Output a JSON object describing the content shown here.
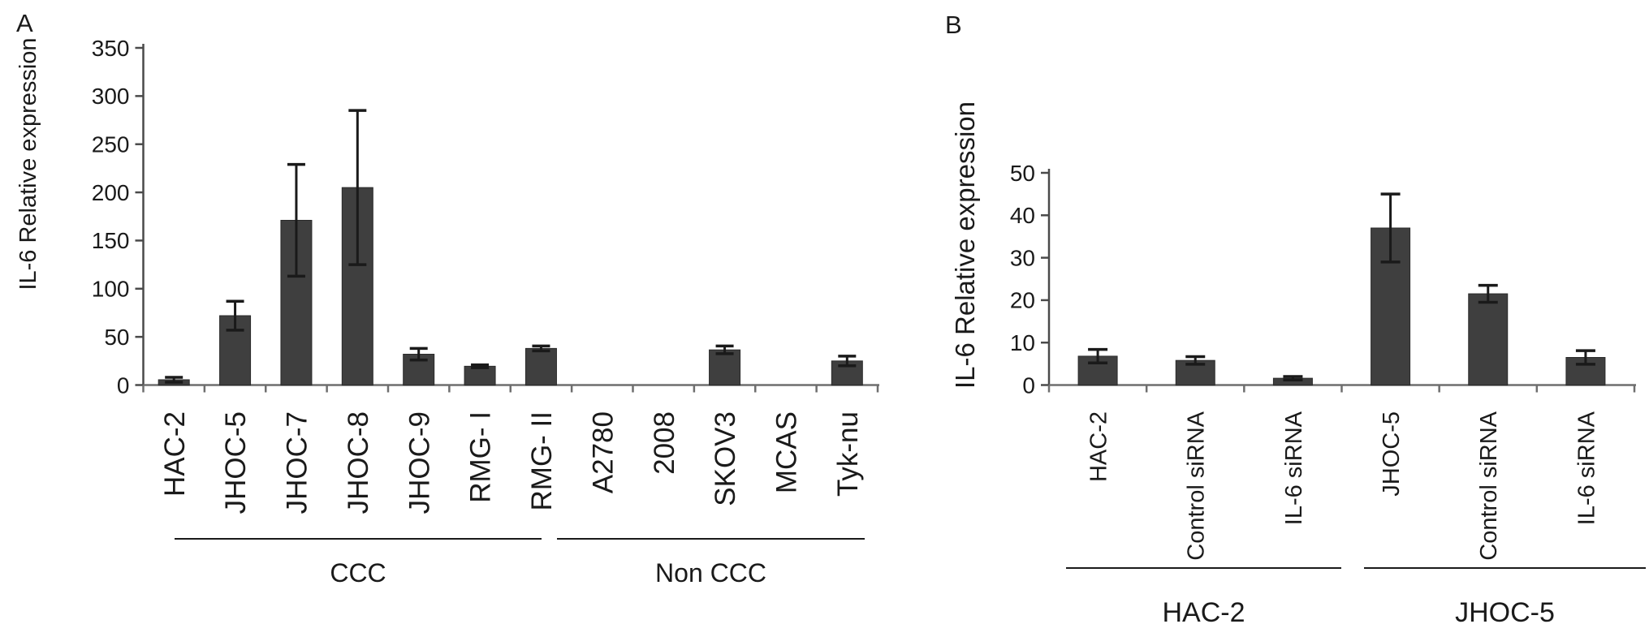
{
  "figure": {
    "description": "Two-panel bar figure of IL-6 relative expression in ovarian cancer cell lines"
  },
  "chart_data": [
    {
      "type": "bar",
      "panel": "A",
      "title": "",
      "xlabel": "",
      "ylabel": "IL-6 Relative expression",
      "ylim": [
        0,
        350
      ],
      "ytick_interval": 50,
      "grid": false,
      "legend": "none",
      "bar_color": "#3f3f3f",
      "error_color": "#1a1a1a",
      "categories": [
        "HAC-2",
        "JHOC-5",
        "JHOC-7",
        "JHOC-8",
        "JHOC-9",
        "RMG- I",
        "RMG- II",
        "A2780",
        "2008",
        "SKOV3",
        "MCAS",
        "Tyk-nu"
      ],
      "values": [
        5.5,
        72,
        171,
        205,
        32,
        19.5,
        38,
        0,
        0,
        36.5,
        0,
        25
      ],
      "errors": [
        2.5,
        15,
        58,
        80,
        6,
        1.5,
        2.5,
        0,
        0,
        4,
        0,
        5
      ],
      "groups": [
        {
          "label": "CCC",
          "from": 0,
          "to": 6
        },
        {
          "label": "Non CCC",
          "from": 7,
          "to": 11
        }
      ]
    },
    {
      "type": "bar",
      "panel": "B",
      "title": "",
      "xlabel": "",
      "ylabel": "IL-6 Relative expression",
      "ylim": [
        0,
        50
      ],
      "ytick_interval": 10,
      "grid": false,
      "legend": "none",
      "bar_color": "#3f3f3f",
      "error_color": "#1a1a1a",
      "categories": [
        "HAC-2",
        "Control siRNA",
        "IL-6 siRNA",
        "JHOC-5",
        "Control siRNA",
        "IL-6 siRNA"
      ],
      "values": [
        6.8,
        5.8,
        1.6,
        37,
        21.5,
        6.5
      ],
      "errors": [
        1.6,
        0.9,
        0.4,
        8,
        2,
        1.6
      ],
      "groups": [
        {
          "label": "HAC-2",
          "from": 0,
          "to": 2
        },
        {
          "label": "JHOC-5",
          "from": 3,
          "to": 5
        }
      ]
    }
  ]
}
